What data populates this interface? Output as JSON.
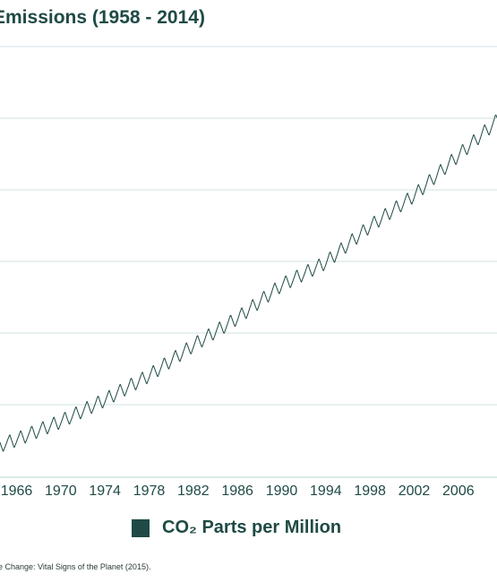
{
  "title": "Emissions (1958 - 2014)",
  "colors": {
    "line": "#1f4a45",
    "text": "#1f4a45",
    "grid": "#cfe3e0"
  },
  "legend": {
    "label": "CO₂ Parts per Million"
  },
  "source": "e Change: Vital Signs of the Planet (2015).",
  "chart_data": {
    "type": "line",
    "title": "Emissions (1958 - 2014)",
    "xlabel": "",
    "ylabel": "",
    "x_ticks": [
      "1966",
      "1970",
      "1974",
      "1978",
      "1982",
      "1986",
      "1990",
      "1994",
      "1998",
      "2002",
      "2006"
    ],
    "xlim": [
      1964.5,
      2009.5
    ],
    "ylim": [
      313,
      403
    ],
    "grid": true,
    "legend_position": "bottom",
    "series": [
      {
        "name": "CO₂ Parts per Million",
        "trend": [
          [
            1964.5,
            319.6
          ],
          [
            1966,
            320.8
          ],
          [
            1970,
            324.6
          ],
          [
            1974,
            329.1
          ],
          [
            1978,
            334.2
          ],
          [
            1982,
            340.5
          ],
          [
            1986,
            346.2
          ],
          [
            1990,
            353.1
          ],
          [
            1994,
            357.8
          ],
          [
            1998,
            365.4
          ],
          [
            2002,
            371.8
          ],
          [
            2006,
            380.2
          ],
          [
            2009.5,
            387.4
          ]
        ],
        "seasonal_amplitude_ppm": 3.0
      }
    ]
  }
}
